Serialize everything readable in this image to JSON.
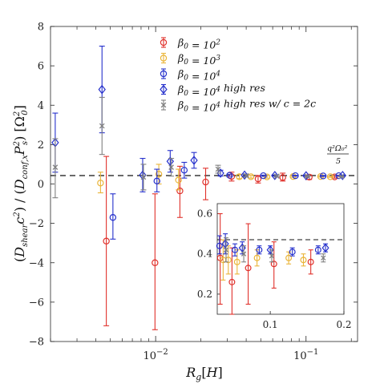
{
  "chart_data": {
    "type": "scatter",
    "x_scale": "log",
    "xlabel": "R_g[H]",
    "ylabel": "(D_shear c^2) / (D_conf,x P_s^2) [Ω_0^2]",
    "xlim": [
      0.002,
      0.22
    ],
    "ylim": [
      -8,
      8
    ],
    "x_tick_labels": [
      "10^-2",
      "10^-1"
    ],
    "y_tick_labels": [
      "-8",
      "-6",
      "-4",
      "-2",
      "0",
      "2",
      "4",
      "6",
      "8"
    ],
    "grid": false,
    "legend_position": "top-right",
    "reference_line": {
      "y": 0.45,
      "style": "dashed",
      "label": "q^2Ω_0^2 / 5"
    },
    "colors": {
      "beta1e2": "#e0312b",
      "beta1e3": "#eab53a",
      "beta1e4": "#2631cc",
      "beta1e4hr": "#2631cc",
      "beta1e4hr2c": "#808080"
    },
    "series": [
      {
        "name": "β_0 = 10^2",
        "key": "beta1e2",
        "marker": "circle",
        "points": [
          {
            "x": 0.0047,
            "y": -2.9,
            "lo": -7.2,
            "hi": 1.4
          },
          {
            "x": 0.0099,
            "y": -4.0,
            "lo": -7.4,
            "hi": -0.5
          },
          {
            "x": 0.0145,
            "y": -0.35,
            "lo": -1.7,
            "hi": 0.9
          },
          {
            "x": 0.0215,
            "y": 0.1,
            "lo": -0.8,
            "hi": 0.8
          },
          {
            "x": 0.032,
            "y": 0.38,
            "lo": 0.15,
            "hi": 0.6
          },
          {
            "x": 0.048,
            "y": 0.26,
            "lo": 0.05,
            "hi": 0.43
          },
          {
            "x": 0.07,
            "y": 0.33,
            "lo": 0.15,
            "hi": 0.55
          },
          {
            "x": 0.105,
            "y": 0.35,
            "lo": 0.23,
            "hi": 0.46
          },
          {
            "x": 0.155,
            "y": 0.36,
            "lo": 0.3,
            "hi": 0.42
          }
        ]
      },
      {
        "name": "β_0 = 10^3",
        "key": "beta1e3",
        "marker": "circle",
        "points": [
          {
            "x": 0.0043,
            "y": 0.05,
            "lo": -0.45,
            "hi": 0.6
          },
          {
            "x": 0.0105,
            "y": 0.5,
            "lo": 0.0,
            "hi": 1.0
          },
          {
            "x": 0.0142,
            "y": 0.2,
            "lo": -0.3,
            "hi": 0.75
          },
          {
            "x": 0.036,
            "y": 0.37,
            "lo": 0.27,
            "hi": 0.47
          },
          {
            "x": 0.043,
            "y": 0.37,
            "lo": 0.3,
            "hi": 0.44
          },
          {
            "x": 0.055,
            "y": 0.36,
            "lo": 0.3,
            "hi": 0.42
          },
          {
            "x": 0.082,
            "y": 0.38,
            "lo": 0.34,
            "hi": 0.42
          },
          {
            "x": 0.125,
            "y": 0.38,
            "lo": 0.35,
            "hi": 0.41
          },
          {
            "x": 0.145,
            "y": 0.37,
            "lo": 0.34,
            "hi": 0.4
          }
        ]
      },
      {
        "name": "β_0 = 10^4",
        "key": "beta1e4",
        "marker": "circle",
        "points": [
          {
            "x": 0.0052,
            "y": -1.7,
            "lo": -2.8,
            "hi": -0.5
          },
          {
            "x": 0.0102,
            "y": 0.15,
            "lo": -0.4,
            "hi": 0.75
          },
          {
            "x": 0.0155,
            "y": 0.7,
            "lo": 0.3,
            "hi": 1.1
          },
          {
            "x": 0.031,
            "y": 0.44,
            "lo": 0.4,
            "hi": 0.49
          },
          {
            "x": 0.052,
            "y": 0.42,
            "lo": 0.39,
            "hi": 0.45
          },
          {
            "x": 0.085,
            "y": 0.42,
            "lo": 0.4,
            "hi": 0.44
          },
          {
            "x": 0.13,
            "y": 0.41,
            "lo": 0.39,
            "hi": 0.43
          },
          {
            "x": 0.165,
            "y": 0.42,
            "lo": 0.4,
            "hi": 0.44
          }
        ]
      },
      {
        "name": "β_0 = 10^4 high res",
        "key": "beta1e4hr",
        "marker": "diamond",
        "points": [
          {
            "x": 0.00215,
            "y": 2.1,
            "lo": 0.6,
            "hi": 3.6
          },
          {
            "x": 0.0044,
            "y": 4.8,
            "lo": 2.6,
            "hi": 7.0
          },
          {
            "x": 0.0082,
            "y": 0.45,
            "lo": -0.4,
            "hi": 1.3
          },
          {
            "x": 0.0125,
            "y": 1.15,
            "lo": 0.6,
            "hi": 1.7
          },
          {
            "x": 0.018,
            "y": 1.2,
            "lo": 0.8,
            "hi": 1.6
          },
          {
            "x": 0.027,
            "y": 0.55,
            "lo": 0.4,
            "hi": 0.7
          },
          {
            "x": 0.039,
            "y": 0.45,
            "lo": 0.4,
            "hi": 0.5
          },
          {
            "x": 0.062,
            "y": 0.43,
            "lo": 0.4,
            "hi": 0.46
          },
          {
            "x": 0.1,
            "y": 0.42,
            "lo": 0.4,
            "hi": 0.44
          },
          {
            "x": 0.175,
            "y": 0.43,
            "lo": 0.41,
            "hi": 0.45
          }
        ]
      },
      {
        "name": "β_0 = 10^4 high res w/ c = 2c",
        "key": "beta1e4hr2c",
        "marker": "x",
        "points": [
          {
            "x": 0.00215,
            "y": 0.85,
            "lo": -0.7,
            "hi": 2.3
          },
          {
            "x": 0.0044,
            "y": 2.95,
            "lo": 1.5,
            "hi": 4.4
          },
          {
            "x": 0.0083,
            "y": 0.35,
            "lo": -0.3,
            "hi": 1.0
          },
          {
            "x": 0.0127,
            "y": 0.85,
            "lo": 0.4,
            "hi": 1.3
          },
          {
            "x": 0.026,
            "y": 0.75,
            "lo": 0.55,
            "hi": 0.95
          },
          {
            "x": 0.04,
            "y": 0.42,
            "lo": 0.36,
            "hi": 0.48
          },
          {
            "x": 0.064,
            "y": 0.4,
            "lo": 0.36,
            "hi": 0.44
          },
          {
            "x": 0.102,
            "y": 0.39,
            "lo": 0.36,
            "hi": 0.42
          },
          {
            "x": 0.172,
            "y": 0.38,
            "lo": 0.36,
            "hi": 0.4
          }
        ]
      }
    ],
    "inset": {
      "x_scale": "linear",
      "xlim": [
        0.028,
        0.2
      ],
      "ylim": [
        0.1,
        0.65
      ],
      "x_tick_labels": [
        "0.1",
        "0.2"
      ],
      "y_tick_labels": [
        "0.2",
        "0.4",
        "0.6"
      ],
      "reference_line": {
        "y": 0.45,
        "style": "dashed"
      }
    }
  }
}
